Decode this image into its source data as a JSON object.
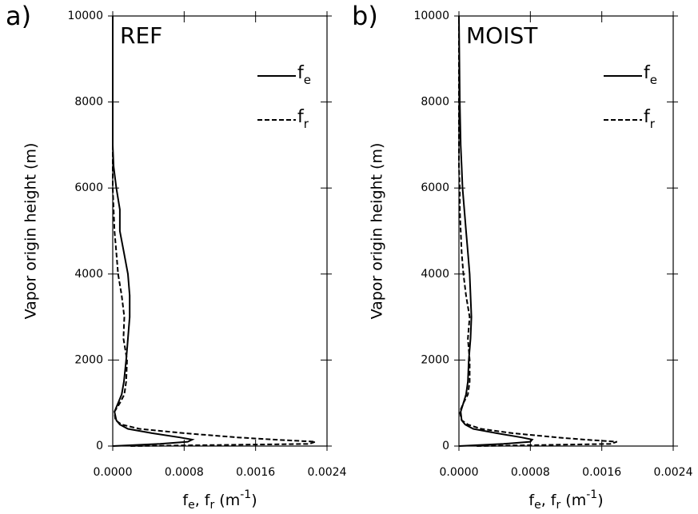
{
  "chart_data": [
    {
      "type": "line",
      "panel_label": "a)",
      "title": "REF",
      "ylabel": "Vapor origin height (m)",
      "xlabel": [
        {
          "t": "f"
        },
        {
          "t": "e",
          "sub": true
        },
        {
          "t": ", f"
        },
        {
          "t": "r",
          "sub": true
        },
        {
          "t": " (m"
        },
        {
          "t": "-1",
          "sup": true
        },
        {
          "t": ")"
        }
      ],
      "xlim": [
        0,
        0.0024
      ],
      "xticks": [
        {
          "value": 0,
          "label": "0.0000"
        },
        0.0008,
        0.0016,
        0.0024
      ],
      "ylim": [
        0,
        10000
      ],
      "yticks": [
        0,
        2000,
        4000,
        6000,
        8000,
        10000
      ],
      "y": [
        0,
        50,
        100,
        150,
        200,
        300,
        400,
        500,
        600,
        800,
        1000,
        1200,
        1500,
        2000,
        2500,
        3000,
        3500,
        4000,
        4500,
        5000,
        5500,
        6000,
        6500,
        7000,
        8000,
        10000
      ],
      "series": [
        {
          "name": [
            "f",
            "e"
          ],
          "color": "#000000",
          "dash": false,
          "values": [
            0,
            0.00053,
            0.00084,
            0.00089,
            0.00075,
            0.00044,
            0.00017,
            8e-05,
            4e-05,
            2e-05,
            6e-05,
            0.0001,
            0.000125,
            0.00015,
            0.00017,
            0.00019,
            0.00019,
            0.00017,
            0.000125,
            8e-05,
            8e-05,
            4e-05,
            1e-05,
            0,
            0,
            0
          ]
        },
        {
          "name": [
            "f",
            "r"
          ],
          "color": "#000000",
          "dash": true,
          "values": [
            0.0002,
            0.0022,
            0.00227,
            0.0018,
            0.0014,
            0.0008,
            0.0003,
            0.0001,
            3e-05,
            2e-05,
            8e-05,
            0.00013,
            0.00015,
            0.00016,
            0.00012,
            0.00013,
            0.0001,
            6e-05,
            4e-05,
            2e-05,
            1e-05,
            0,
            0,
            0,
            0,
            0
          ]
        }
      ]
    },
    {
      "type": "line",
      "panel_label": "b)",
      "title": "MOIST",
      "ylabel": "Vapor origin height (m)",
      "xlabel": [
        {
          "t": "f"
        },
        {
          "t": "e",
          "sub": true
        },
        {
          "t": ", f"
        },
        {
          "t": "r",
          "sub": true
        },
        {
          "t": " (m"
        },
        {
          "t": "-1",
          "sup": true
        },
        {
          "t": ")"
        }
      ],
      "xlim": [
        0,
        0.0024
      ],
      "xticks": [
        {
          "value": 0,
          "label": "0.0000"
        },
        0.0008,
        0.0016,
        0.0024
      ],
      "ylim": [
        0,
        10000
      ],
      "yticks": [
        0,
        2000,
        4000,
        6000,
        8000,
        10000
      ],
      "y": [
        0,
        50,
        100,
        150,
        200,
        300,
        400,
        500,
        600,
        800,
        1000,
        1200,
        1500,
        2000,
        2500,
        3000,
        3500,
        4000,
        4500,
        5000,
        5500,
        6000,
        6500,
        7000,
        8000,
        10000
      ],
      "series": [
        {
          "name": [
            "f",
            "e"
          ],
          "color": "#000000",
          "dash": false,
          "values": [
            0,
            0.0005,
            0.0008,
            0.00082,
            0.0007,
            0.00042,
            0.00016,
            7e-05,
            3e-05,
            2e-05,
            5e-05,
            8e-05,
            0.0001,
            0.00011,
            0.00013,
            0.00014,
            0.00013,
            0.00012,
            0.0001,
            8e-05,
            6e-05,
            4e-05,
            3e-05,
            2e-05,
            1e-05,
            0
          ]
        },
        {
          "name": [
            "f",
            "r"
          ],
          "color": "#000000",
          "dash": true,
          "values": [
            0.0002,
            0.0017,
            0.00177,
            0.0014,
            0.0011,
            0.0006,
            0.00025,
            0.0001,
            3e-05,
            1e-05,
            5e-05,
            0.0001,
            0.00012,
            0.00012,
            0.0001,
            0.00012,
            8e-05,
            5e-05,
            3e-05,
            2e-05,
            1e-05,
            1e-05,
            0,
            0,
            0,
            0
          ]
        }
      ]
    }
  ]
}
